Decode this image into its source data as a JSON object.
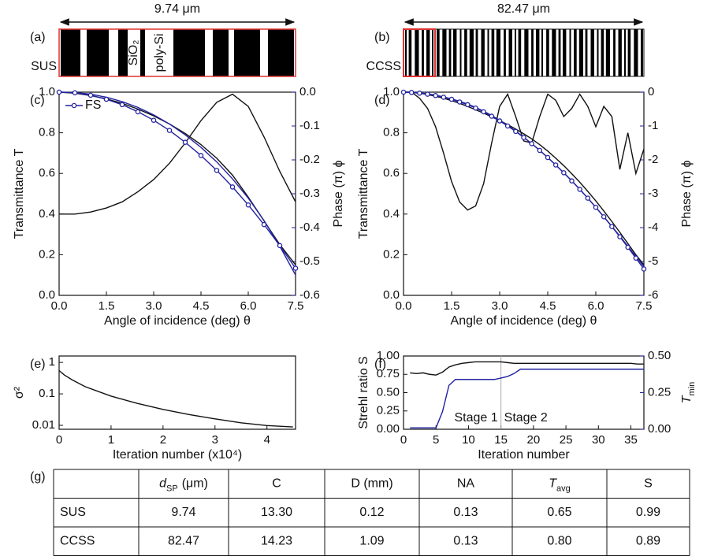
{
  "structures": [
    {
      "panel": "(a)",
      "width_label": "9.74 μm",
      "name": "SUS",
      "materials": [
        "SiO₂",
        "poly-Si"
      ]
    },
    {
      "panel": "(b)",
      "width_label": "82.47 μm",
      "name": "CCSS"
    }
  ],
  "chart_data": [
    {
      "type": "line",
      "panel": "(c)",
      "xlabel": "Angle of incidence (deg) θ",
      "ylabel": "Transmittance T",
      "y2label": "Phase (π) ϕ",
      "xlim": [
        0,
        7.5
      ],
      "xticks": [
        {
          "value": 0,
          "label": "0.0"
        },
        1.5,
        {
          "value": 3,
          "label": "3.0"
        },
        4.5,
        {
          "value": 6,
          "label": "6.0"
        },
        7.5
      ],
      "ylim": [
        0,
        1
      ],
      "yticks": [
        {
          "value": 0,
          "label": "0.0"
        },
        0.2,
        0.4,
        0.6,
        0.8,
        {
          "value": 1,
          "label": "1.0"
        }
      ],
      "y2lim": [
        -0.6,
        0
      ],
      "y2ticks": [
        {
          "value": 0,
          "label": "0.0"
        },
        -0.1,
        -0.2,
        -0.3,
        -0.4,
        -0.5,
        -0.6
      ],
      "y2_color": "#2222a0",
      "x": [
        0,
        0.5,
        1,
        1.5,
        2,
        2.5,
        3,
        3.5,
        4,
        4.5,
        5,
        5.5,
        6,
        6.5,
        7,
        7.5
      ],
      "series": [
        {
          "color": "#111111",
          "values": [
            0.4,
            0.4,
            0.41,
            0.43,
            0.46,
            0.51,
            0.57,
            0.65,
            0.75,
            0.86,
            0.95,
            0.99,
            0.93,
            0.78,
            0.61,
            0.46
          ]
        },
        {
          "color": "#111111",
          "axis": "y2",
          "values": [
            0,
            -0.003,
            -0.01,
            -0.02,
            -0.033,
            -0.05,
            -0.07,
            -0.094,
            -0.122,
            -0.155,
            -0.195,
            -0.245,
            -0.31,
            -0.38,
            -0.45,
            -0.51
          ]
        },
        {
          "color": "#2222a0",
          "axis": "y2",
          "values": [
            0,
            -0.001,
            -0.006,
            -0.015,
            -0.028,
            -0.045,
            -0.067,
            -0.094,
            -0.126,
            -0.163,
            -0.206,
            -0.256,
            -0.313,
            -0.379,
            -0.455,
            -0.54
          ]
        },
        {
          "name": "FS",
          "color": "#2222a0",
          "axis": "y2",
          "markers": true,
          "values": [
            0,
            -0.002,
            -0.009,
            -0.021,
            -0.037,
            -0.058,
            -0.083,
            -0.113,
            -0.148,
            -0.187,
            -0.231,
            -0.28,
            -0.333,
            -0.391,
            -0.453,
            -0.52
          ]
        }
      ]
    },
    {
      "type": "line",
      "panel": "(d)",
      "xlabel": "Angle of incidence (deg) θ",
      "ylabel": "Transmittance T",
      "y2label": "Phase (π) ϕ",
      "xlim": [
        0,
        7.5
      ],
      "xticks": [
        {
          "value": 0,
          "label": "0.0"
        },
        1.5,
        {
          "value": 3,
          "label": "3.0"
        },
        4.5,
        {
          "value": 6,
          "label": "6.0"
        },
        7.5
      ],
      "ylim": [
        0,
        1
      ],
      "yticks": [
        {
          "value": 0,
          "label": "0.0"
        },
        0.2,
        0.4,
        0.6,
        0.8,
        {
          "value": 1,
          "label": "1.0"
        }
      ],
      "y2lim": [
        -6,
        0
      ],
      "y2ticks": [
        0,
        -1,
        -2,
        -3,
        -4,
        -5,
        -6
      ],
      "y2_color": "#2222a0",
      "x": [
        0,
        0.25,
        0.5,
        0.75,
        1,
        1.25,
        1.5,
        1.75,
        2,
        2.25,
        2.5,
        2.75,
        3,
        3.25,
        3.5,
        3.75,
        4,
        4.25,
        4.5,
        4.75,
        5,
        5.25,
        5.5,
        5.75,
        6,
        6.25,
        6.5,
        6.75,
        7,
        7.25,
        7.5
      ],
      "series": [
        {
          "color": "#111111",
          "values": [
            1.0,
            1.0,
            0.97,
            0.92,
            0.83,
            0.7,
            0.56,
            0.46,
            0.42,
            0.44,
            0.55,
            0.75,
            0.93,
            0.99,
            0.88,
            0.76,
            0.75,
            0.88,
            0.99,
            0.96,
            0.88,
            0.92,
            0.99,
            0.93,
            0.83,
            0.93,
            0.88,
            0.62,
            0.8,
            0.6,
            0.72
          ]
        },
        {
          "color": "#111111",
          "axis": "y2",
          "values": [
            0,
            -0.01,
            -0.03,
            -0.07,
            -0.12,
            -0.18,
            -0.25,
            -0.33,
            -0.42,
            -0.52,
            -0.62,
            -0.73,
            -0.84,
            -0.96,
            -1.09,
            -1.23,
            -1.38,
            -1.55,
            -1.74,
            -1.95,
            -2.17,
            -2.41,
            -2.66,
            -2.93,
            -3.21,
            -3.51,
            -3.82,
            -4.14,
            -4.47,
            -4.8,
            -5.1
          ]
        },
        {
          "color": "#2222a0",
          "axis": "y2",
          "values": [
            0,
            0,
            -0.02,
            -0.05,
            -0.09,
            -0.14,
            -0.2,
            -0.27,
            -0.35,
            -0.45,
            -0.56,
            -0.69,
            -0.83,
            -0.98,
            -1.15,
            -1.33,
            -1.52,
            -1.72,
            -1.93,
            -2.15,
            -2.38,
            -2.62,
            -2.87,
            -3.13,
            -3.4,
            -3.68,
            -3.96,
            -4.25,
            -4.55,
            -4.85,
            -5.15
          ]
        },
        {
          "color": "#2222a0",
          "axis": "y2",
          "markers": true,
          "values": [
            0,
            -0.01,
            -0.03,
            -0.06,
            -0.1,
            -0.15,
            -0.21,
            -0.29,
            -0.37,
            -0.47,
            -0.58,
            -0.71,
            -0.85,
            -1.0,
            -1.16,
            -1.34,
            -1.52,
            -1.72,
            -1.93,
            -2.15,
            -2.38,
            -2.62,
            -2.87,
            -3.13,
            -3.4,
            -3.68,
            -3.97,
            -4.27,
            -4.58,
            -4.9,
            -5.22
          ]
        }
      ]
    },
    {
      "type": "line",
      "panel": "(e)",
      "xlabel": "Iteration number (x10⁴)",
      "ylabel": "σ²",
      "log_y": true,
      "xlim": [
        0,
        4.55
      ],
      "xticks": [
        0,
        1,
        2,
        3,
        4
      ],
      "ylim": [
        0.0075,
        1.6
      ],
      "yticks": [
        0.01,
        0.1,
        1
      ],
      "x": [
        0,
        0.1,
        0.25,
        0.5,
        0.75,
        1,
        1.5,
        2,
        2.5,
        3,
        3.5,
        4,
        4.5
      ],
      "series": [
        {
          "color": "#111111",
          "values": [
            0.55,
            0.4,
            0.28,
            0.17,
            0.12,
            0.085,
            0.05,
            0.032,
            0.022,
            0.016,
            0.012,
            0.0098,
            0.0089
          ]
        }
      ]
    },
    {
      "type": "line",
      "panel": "(f)",
      "xlabel": "Iteration number",
      "ylabel": "Strehl ratio S",
      "y2label": {
        "base": "T",
        "sub": "min"
      },
      "xlim": [
        0,
        37
      ],
      "xticks": [
        0,
        5,
        10,
        15,
        20,
        25,
        30,
        35
      ],
      "ylim": [
        0,
        1
      ],
      "yticks": [
        {
          "value": 0,
          "label": "0.00"
        },
        0.25,
        {
          "value": 0.5,
          "label": "0.50"
        },
        0.75,
        {
          "value": 1,
          "label": "1.00"
        }
      ],
      "y2lim": [
        0,
        0.5
      ],
      "y2ticks": [
        {
          "value": 0,
          "label": "0.00"
        },
        0.25,
        {
          "value": 0.5,
          "label": "0.50"
        }
      ],
      "y2_color": "#2222a0",
      "stage_divider": 15,
      "annotations": [
        "Stage 1",
        "Stage 2"
      ],
      "x": [
        1,
        2,
        3,
        4,
        5,
        6,
        7,
        8,
        9,
        10,
        11,
        12,
        13,
        14,
        15,
        16,
        17,
        18,
        19,
        20,
        21,
        22,
        23,
        24,
        25,
        26,
        27,
        28,
        29,
        30,
        31,
        32,
        33,
        34,
        35,
        36,
        37
      ],
      "series": [
        {
          "color": "#111111",
          "values": [
            0.77,
            0.76,
            0.77,
            0.75,
            0.74,
            0.78,
            0.85,
            0.88,
            0.9,
            0.91,
            0.92,
            0.92,
            0.92,
            0.92,
            0.92,
            0.91,
            0.9,
            0.9,
            0.9,
            0.9,
            0.9,
            0.9,
            0.9,
            0.9,
            0.9,
            0.9,
            0.9,
            0.9,
            0.9,
            0.9,
            0.9,
            0.9,
            0.9,
            0.9,
            0.9,
            0.89,
            0.89
          ]
        },
        {
          "color": "#2222a0",
          "axis": "y2",
          "values": [
            0.01,
            0.01,
            0.01,
            0.01,
            0.01,
            0.12,
            0.3,
            0.34,
            0.34,
            0.34,
            0.34,
            0.34,
            0.34,
            0.34,
            0.35,
            0.36,
            0.38,
            0.41,
            0.41,
            0.41,
            0.41,
            0.41,
            0.41,
            0.41,
            0.41,
            0.41,
            0.41,
            0.41,
            0.41,
            0.41,
            0.41,
            0.41,
            0.41,
            0.41,
            0.41,
            0.41,
            0.41
          ]
        }
      ]
    }
  ],
  "table": {
    "panel": "(g)",
    "header": [
      {
        "base": "d",
        "sub": "SP",
        "suffix": "(μm)"
      },
      "C",
      "D (mm)",
      "NA",
      {
        "base": "T",
        "sub": "avg"
      },
      "S"
    ],
    "rows": [
      [
        "SUS",
        "9.74",
        "13.30",
        "0.12",
        "0.13",
        "0.65",
        "0.99"
      ],
      [
        "CCSS",
        "82.47",
        "14.23",
        "1.09",
        "0.13",
        "0.80",
        "0.89"
      ]
    ]
  }
}
